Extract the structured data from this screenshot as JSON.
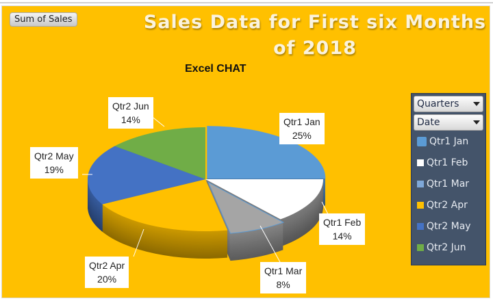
{
  "field_button": "Sum of Sales",
  "chart_data": {
    "type": "pie",
    "title": "Sales Data for First six Months of 2018",
    "subtitle": "Excel CHAT",
    "categories": [
      "Qtr1 Jan",
      "Qtr1 Feb",
      "Qtr1 Mar",
      "Qtr2 Apr",
      "Qtr2 May",
      "Qtr2 Jun"
    ],
    "values": [
      25,
      14,
      8,
      20,
      19,
      14
    ],
    "labels": [
      "25%",
      "14%",
      "8%",
      "20%",
      "19%",
      "14%"
    ],
    "colors": [
      "#5B9BD5",
      "#FFFFFF",
      "#A5A5A5",
      "#FFC000",
      "#4472C4",
      "#70AD47"
    ],
    "legend_placement": "right"
  },
  "legend": {
    "filters": [
      "Quarters",
      "Date"
    ],
    "swatch_colors": [
      "#5B9BD5",
      "#FFFFFF",
      "#7FA8D8",
      "#FFC000",
      "#4472C4",
      "#70AD47"
    ]
  }
}
